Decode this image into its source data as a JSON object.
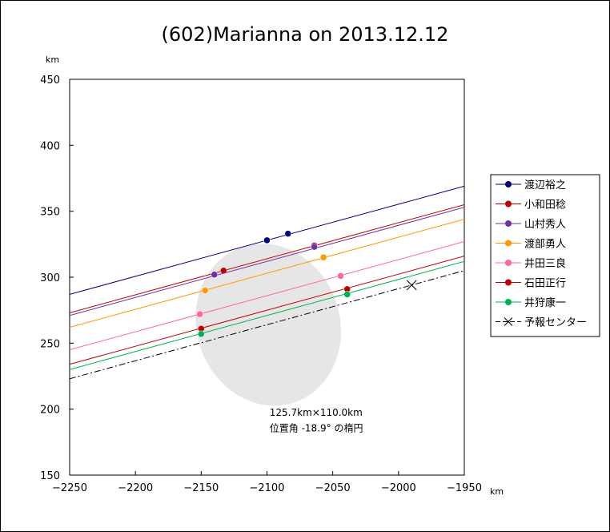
{
  "chart_data": {
    "type": "scatter",
    "title": "(602)Marianna on 2013.12.12",
    "xunit": "km",
    "yunit": "km",
    "xlim": [
      -2250,
      -1950
    ],
    "ylim": [
      150,
      450
    ],
    "xticks": [
      -2250,
      -2200,
      -2150,
      -2100,
      -2050,
      -2000,
      -1950
    ],
    "yticks": [
      150,
      200,
      250,
      300,
      350,
      400,
      450
    ],
    "xtick_labels": [
      "−2250",
      "−2200",
      "−2150",
      "−2100",
      "−2050",
      "−2000",
      "−1950"
    ],
    "ytick_labels": [
      "150",
      "200",
      "250",
      "300",
      "350",
      "400",
      "450"
    ],
    "grid": false,
    "legend_position": "right",
    "ellipse": {
      "center": [
        -2099,
        264
      ],
      "major_axis_km": 125.7,
      "minor_axis_km": 110.0,
      "position_angle_deg": -18.9,
      "fill": "#e6e6e6"
    },
    "annotation": {
      "line1": "125.7km×110.0km",
      "line2": "位置角 -18.9° の楕円"
    },
    "series": [
      {
        "name": "渡辺裕之",
        "color": "#000080",
        "line": [
          [
            -2250,
            287
          ],
          [
            -1950,
            369
          ]
        ],
        "points": [
          [
            -2100,
            328
          ],
          [
            -2084,
            333
          ]
        ]
      },
      {
        "name": "小和田稔",
        "color": "#c00000",
        "line": [
          [
            -2250,
            273
          ],
          [
            -1950,
            355
          ]
        ],
        "points": [
          [
            -2133,
            305
          ],
          [
            -2064,
            324
          ]
        ]
      },
      {
        "name": "山村秀人",
        "color": "#7030a0",
        "line": [
          [
            -2250,
            271
          ],
          [
            -1950,
            353
          ]
        ],
        "points": [
          [
            -2140,
            302
          ],
          [
            -2064,
            323
          ]
        ]
      },
      {
        "name": "渡部勇人",
        "color": "#ff9900",
        "line": [
          [
            -2250,
            262
          ],
          [
            -1950,
            344
          ]
        ],
        "points": [
          [
            -2147,
            290
          ],
          [
            -2057,
            315
          ]
        ]
      },
      {
        "name": "井田三良",
        "color": "#ff6699",
        "line": [
          [
            -2250,
            245
          ],
          [
            -1950,
            327
          ]
        ],
        "points": [
          [
            -2151,
            272
          ],
          [
            -2044,
            301
          ]
        ]
      },
      {
        "name": "石田正行",
        "color": "#c00000",
        "line": [
          [
            -2250,
            234
          ],
          [
            -1950,
            316
          ]
        ],
        "points": [
          [
            -2150,
            261
          ],
          [
            -2039,
            291
          ]
        ]
      },
      {
        "name": "井狩康一",
        "color": "#00b050",
        "line": [
          [
            -2250,
            230
          ],
          [
            -1950,
            312
          ]
        ],
        "points": [
          [
            -2150,
            257
          ],
          [
            -2039,
            287
          ]
        ]
      },
      {
        "name": "予報センター",
        "color": "#000000",
        "dashed": true,
        "line": [
          [
            -2250,
            223
          ],
          [
            -1950,
            305
          ]
        ],
        "center_marker": [
          -1990,
          294
        ]
      }
    ]
  }
}
